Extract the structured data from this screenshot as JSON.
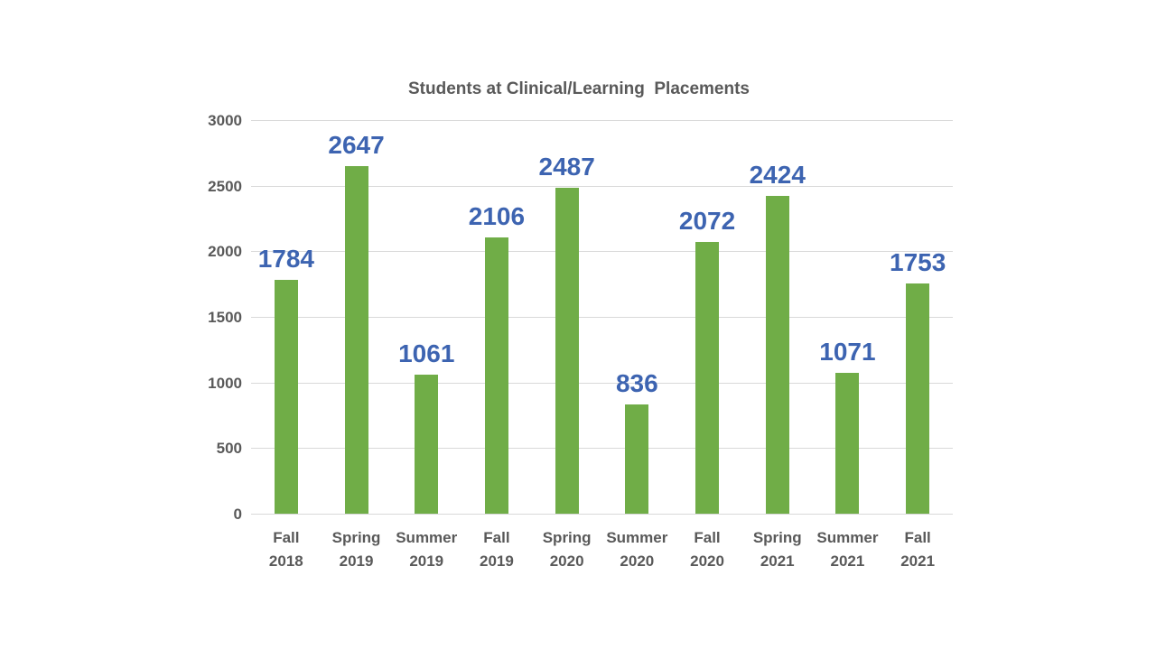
{
  "chart_data": {
    "type": "bar",
    "title": "Students at Clinical/Learning  Placements",
    "categories": [
      [
        "Fall",
        "2018"
      ],
      [
        "Spring",
        "2019"
      ],
      [
        "Summer",
        "2019"
      ],
      [
        "Fall",
        "2019"
      ],
      [
        "Spring",
        "2020"
      ],
      [
        "Summer",
        "2020"
      ],
      [
        "Fall",
        "2020"
      ],
      [
        "Spring",
        "2021"
      ],
      [
        "Summer",
        "2021"
      ],
      [
        "Fall",
        "2021"
      ]
    ],
    "values": [
      1784,
      2647,
      1061,
      2106,
      2487,
      836,
      2072,
      2424,
      1071,
      1753
    ],
    "data_labels": [
      "1784",
      "2647",
      "1061",
      "2106",
      "2487",
      "836",
      "2072",
      "2424",
      "1071",
      "1753"
    ],
    "xlabel": "",
    "ylabel": "",
    "ylim": [
      0,
      3000
    ],
    "yticks": [
      0,
      500,
      1000,
      1500,
      2000,
      2500,
      3000
    ],
    "grid": true,
    "legend_position": "none",
    "colors": {
      "bar": "#70AD47",
      "value_label": "#3D64B1",
      "axis_text": "#595959",
      "title_text": "#595959",
      "gridline": "#D9D9D9",
      "background": "#FFFFFF"
    }
  }
}
